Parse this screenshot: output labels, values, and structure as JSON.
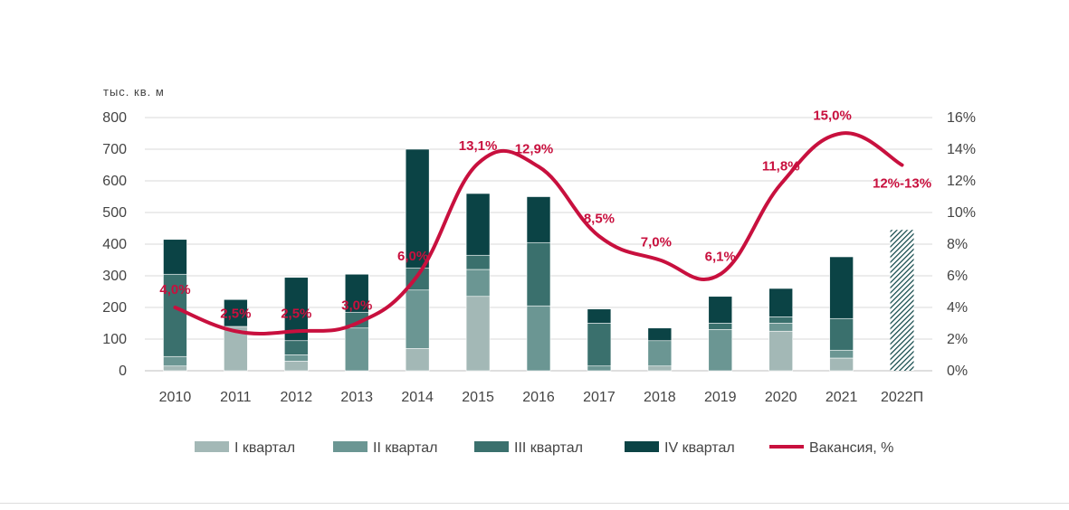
{
  "chart_data": {
    "type": "bar",
    "stacked": true,
    "ylabel": "тыс. кв. м",
    "ylim": [
      0,
      800
    ],
    "y_ticks": [
      "0",
      "100",
      "200",
      "300",
      "400",
      "500",
      "600",
      "700",
      "800"
    ],
    "y2_ticks": [
      "0%",
      "2%",
      "4%",
      "6%",
      "8%",
      "10%",
      "12%",
      "14%",
      "16%"
    ],
    "y2lim": [
      0,
      16
    ],
    "categories": [
      "2010",
      "2011",
      "2012",
      "2013",
      "2014",
      "2015",
      "2016",
      "2017",
      "2018",
      "2019",
      "2020",
      "2021",
      "2022П"
    ],
    "series": [
      {
        "name": "I квартал",
        "color": "#a3b8b6",
        "values": [
          15,
          140,
          30,
          0,
          70,
          235,
          0,
          0,
          15,
          0,
          125,
          40,
          0
        ]
      },
      {
        "name": "II квартал",
        "color": "#6b9693",
        "values": [
          30,
          0,
          20,
          135,
          185,
          85,
          205,
          15,
          80,
          130,
          25,
          25,
          0
        ]
      },
      {
        "name": "III квартал",
        "color": "#3a706d",
        "values": [
          260,
          0,
          45,
          50,
          70,
          45,
          200,
          135,
          0,
          20,
          20,
          100,
          0
        ]
      },
      {
        "name": "IV квартал",
        "color": "#0b4345",
        "values": [
          110,
          85,
          200,
          120,
          375,
          195,
          145,
          45,
          40,
          85,
          90,
          195,
          0
        ]
      }
    ],
    "forecast": {
      "category": "2022П",
      "value": 445,
      "color": "#0b4345",
      "pattern": "hatched"
    },
    "line": {
      "name": "Вакансия, %",
      "color": "#c8103e",
      "values": [
        4.0,
        2.5,
        2.5,
        3.0,
        6.0,
        13.1,
        12.9,
        8.5,
        7.0,
        6.1,
        11.8,
        15.0,
        13.0
      ],
      "labels": [
        "4,0%",
        "2,5%",
        "2,5%",
        "3,0%",
        "6,0%",
        "13,1%",
        "12,9%",
        "8,5%",
        "7,0%",
        "6,1%",
        "11,8%",
        "15,0%",
        "12%-13%"
      ]
    },
    "legend_position": "bottom"
  }
}
